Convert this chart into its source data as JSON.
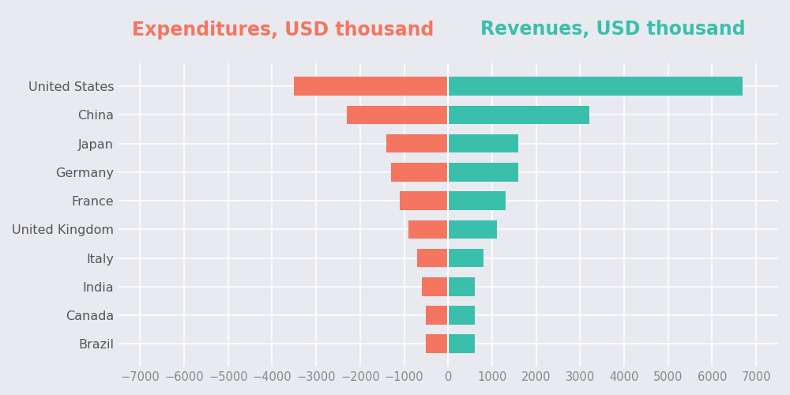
{
  "countries": [
    "United States",
    "China",
    "Japan",
    "Germany",
    "France",
    "United Kingdom",
    "Italy",
    "India",
    "Canada",
    "Brazil"
  ],
  "expenditures": [
    -3500,
    -2300,
    -1400,
    -1300,
    -1100,
    -900,
    -700,
    -600,
    -500,
    -500
  ],
  "revenues": [
    6700,
    3200,
    1600,
    1600,
    1300,
    1100,
    800,
    600,
    600,
    600
  ],
  "expenditure_color": "#F47560",
  "revenue_color": "#3BBFAD",
  "background_color": "#E8EAF0",
  "plot_bg_color": "#E8EAF0",
  "grid_color": "#FFFFFF",
  "title_expenditure": "Expenditures, USD thousand",
  "title_revenue": "Revenues, USD thousand",
  "title_expenditure_color": "#F47560",
  "title_revenue_color": "#3BBFAD",
  "xlim": [
    -7500,
    7500
  ],
  "xticks": [
    -7000,
    -6000,
    -5000,
    -4000,
    -3000,
    -2000,
    -1000,
    0,
    1000,
    2000,
    3000,
    4000,
    5000,
    6000,
    7000
  ],
  "bar_height": 0.65,
  "title_fontsize": 17,
  "tick_fontsize": 10.5,
  "ylabel_fontsize": 11.5
}
